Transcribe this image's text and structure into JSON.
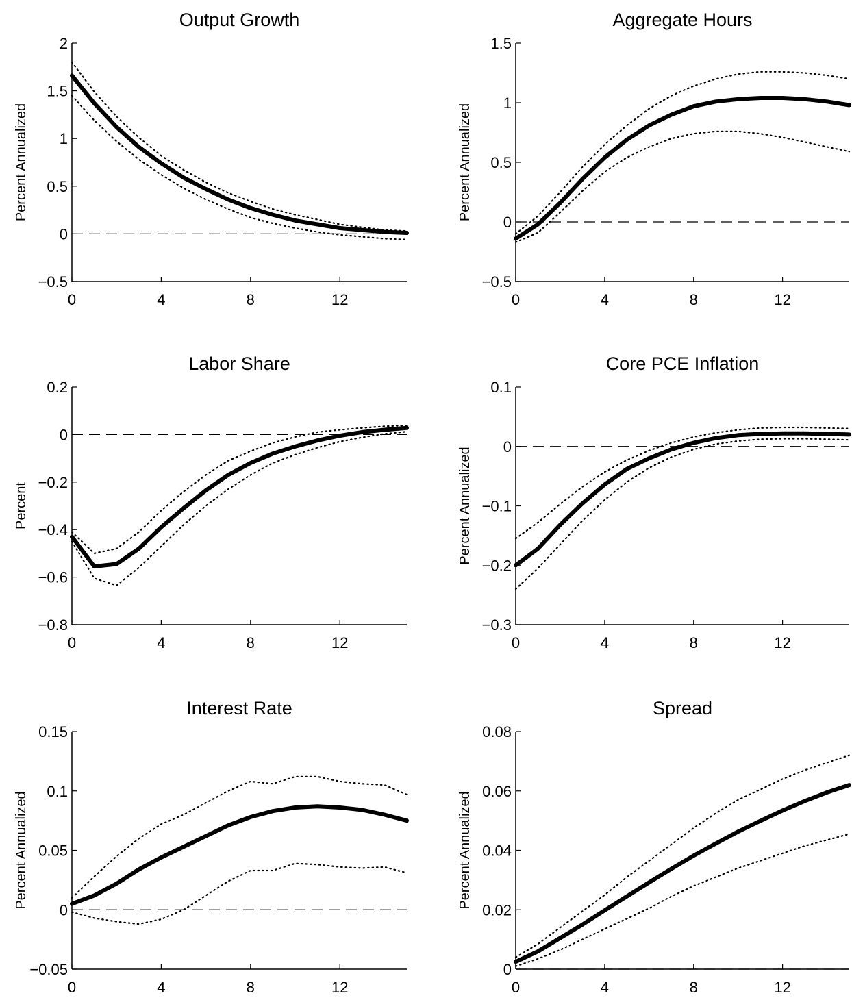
{
  "chart_data": [
    {
      "type": "line",
      "title": "Output Growth",
      "ylabel": "Percent Annualized",
      "xlim": [
        0,
        15
      ],
      "ylim": [
        -0.5,
        2
      ],
      "xticks": [
        0,
        4,
        8,
        12
      ],
      "xtick_labels": [
        "0",
        "4",
        "8",
        "12"
      ],
      "yticks": [
        -0.5,
        0,
        0.5,
        1,
        1.5,
        2
      ],
      "ytick_labels": [
        "-0.5",
        "0",
        "0.5",
        "1",
        "1.5",
        "2"
      ],
      "zero_line": 0,
      "x": [
        0,
        1,
        2,
        3,
        4,
        5,
        6,
        7,
        8,
        9,
        10,
        11,
        12,
        13,
        14,
        15
      ],
      "series": [
        {
          "role": "median",
          "values": [
            1.66,
            1.37,
            1.12,
            0.91,
            0.74,
            0.59,
            0.47,
            0.36,
            0.27,
            0.2,
            0.14,
            0.1,
            0.06,
            0.04,
            0.02,
            0.01
          ]
        },
        {
          "role": "upper",
          "values": [
            1.8,
            1.49,
            1.23,
            1.01,
            0.82,
            0.67,
            0.54,
            0.43,
            0.34,
            0.26,
            0.2,
            0.15,
            0.1,
            0.07,
            0.04,
            0.03
          ]
        },
        {
          "role": "lower",
          "values": [
            1.45,
            1.19,
            0.97,
            0.78,
            0.62,
            0.48,
            0.36,
            0.26,
            0.17,
            0.11,
            0.06,
            0.02,
            -0.01,
            -0.03,
            -0.05,
            -0.06
          ]
        }
      ]
    },
    {
      "type": "line",
      "title": "Aggregate Hours",
      "ylabel": "Percent Annualized",
      "xlim": [
        0,
        15
      ],
      "ylim": [
        -0.5,
        1.5
      ],
      "xticks": [
        0,
        4,
        8,
        12
      ],
      "xtick_labels": [
        "0",
        "4",
        "8",
        "12"
      ],
      "yticks": [
        -0.5,
        0,
        0.5,
        1,
        1.5
      ],
      "ytick_labels": [
        "-0.5",
        "0",
        "0.5",
        "1",
        "1.5"
      ],
      "zero_line": 0,
      "x": [
        0,
        1,
        2,
        3,
        4,
        5,
        6,
        7,
        8,
        9,
        10,
        11,
        12,
        13,
        14,
        15
      ],
      "series": [
        {
          "role": "median",
          "values": [
            -0.14,
            -0.02,
            0.16,
            0.36,
            0.54,
            0.69,
            0.81,
            0.9,
            0.97,
            1.01,
            1.03,
            1.04,
            1.04,
            1.03,
            1.01,
            0.98
          ]
        },
        {
          "role": "upper",
          "values": [
            -0.1,
            0.05,
            0.25,
            0.46,
            0.65,
            0.81,
            0.95,
            1.06,
            1.14,
            1.2,
            1.24,
            1.26,
            1.26,
            1.25,
            1.23,
            1.2
          ]
        },
        {
          "role": "lower",
          "values": [
            -0.17,
            -0.09,
            0.08,
            0.26,
            0.42,
            0.54,
            0.63,
            0.7,
            0.74,
            0.76,
            0.76,
            0.74,
            0.71,
            0.67,
            0.63,
            0.59
          ]
        }
      ]
    },
    {
      "type": "line",
      "title": "Labor Share",
      "ylabel": "Percent",
      "xlim": [
        0,
        15
      ],
      "ylim": [
        -0.8,
        0.2
      ],
      "xticks": [
        0,
        4,
        8,
        12
      ],
      "xtick_labels": [
        "0",
        "4",
        "8",
        "12"
      ],
      "yticks": [
        -0.8,
        -0.6,
        -0.4,
        -0.2,
        0,
        0.2
      ],
      "ytick_labels": [
        "-0.8",
        "-0.6",
        "-0.4",
        "-0.2",
        "0",
        "0.2"
      ],
      "zero_line": 0,
      "x": [
        0,
        1,
        2,
        3,
        4,
        5,
        6,
        7,
        8,
        9,
        10,
        11,
        12,
        13,
        14,
        15
      ],
      "series": [
        {
          "role": "median",
          "values": [
            -0.43,
            -0.555,
            -0.545,
            -0.48,
            -0.39,
            -0.31,
            -0.235,
            -0.17,
            -0.12,
            -0.08,
            -0.05,
            -0.025,
            -0.005,
            0.01,
            0.02,
            0.028
          ]
        },
        {
          "role": "upper",
          "values": [
            -0.41,
            -0.5,
            -0.48,
            -0.41,
            -0.32,
            -0.24,
            -0.17,
            -0.11,
            -0.07,
            -0.035,
            -0.01,
            0.01,
            0.02,
            0.028,
            0.035,
            0.038
          ]
        },
        {
          "role": "lower",
          "values": [
            -0.45,
            -0.605,
            -0.635,
            -0.56,
            -0.47,
            -0.38,
            -0.3,
            -0.23,
            -0.17,
            -0.12,
            -0.085,
            -0.055,
            -0.03,
            -0.012,
            0.003,
            0.012
          ]
        }
      ]
    },
    {
      "type": "line",
      "title": "Core PCE Inflation",
      "ylabel": "Percent Annualized",
      "xlim": [
        0,
        15
      ],
      "ylim": [
        -0.3,
        0.1
      ],
      "xticks": [
        0,
        4,
        8,
        12
      ],
      "xtick_labels": [
        "0",
        "4",
        "8",
        "12"
      ],
      "yticks": [
        -0.3,
        -0.2,
        -0.1,
        0,
        0.1
      ],
      "ytick_labels": [
        "-0.3",
        "-0.2",
        "-0.1",
        "0",
        "0.1"
      ],
      "zero_line": 0,
      "x": [
        0,
        1,
        2,
        3,
        4,
        5,
        6,
        7,
        8,
        9,
        10,
        11,
        12,
        13,
        14,
        15
      ],
      "series": [
        {
          "role": "median",
          "values": [
            -0.2,
            -0.172,
            -0.132,
            -0.096,
            -0.064,
            -0.038,
            -0.02,
            -0.005,
            0.006,
            0.014,
            0.019,
            0.021,
            0.022,
            0.022,
            0.021,
            0.02
          ]
        },
        {
          "role": "upper",
          "values": [
            -0.155,
            -0.128,
            -0.097,
            -0.068,
            -0.043,
            -0.023,
            -0.007,
            0.006,
            0.016,
            0.023,
            0.028,
            0.031,
            0.032,
            0.032,
            0.031,
            0.03
          ]
        },
        {
          "role": "lower",
          "values": [
            -0.24,
            -0.205,
            -0.165,
            -0.125,
            -0.09,
            -0.06,
            -0.036,
            -0.018,
            -0.005,
            0.004,
            0.009,
            0.012,
            0.013,
            0.013,
            0.012,
            0.011
          ]
        }
      ]
    },
    {
      "type": "line",
      "title": "Interest Rate",
      "ylabel": "Percent Annualized",
      "xlim": [
        0,
        15
      ],
      "ylim": [
        -0.05,
        0.15
      ],
      "xticks": [
        0,
        4,
        8,
        12
      ],
      "xtick_labels": [
        "0",
        "4",
        "8",
        "12"
      ],
      "yticks": [
        -0.05,
        0,
        0.05,
        0.1,
        0.15
      ],
      "ytick_labels": [
        "-0.05",
        "0",
        "0.05",
        "0.1",
        "0.15"
      ],
      "zero_line": 0,
      "x": [
        0,
        1,
        2,
        3,
        4,
        5,
        6,
        7,
        8,
        9,
        10,
        11,
        12,
        13,
        14,
        15
      ],
      "series": [
        {
          "role": "median",
          "values": [
            0.005,
            0.012,
            0.022,
            0.034,
            0.044,
            0.053,
            0.062,
            0.071,
            0.078,
            0.083,
            0.086,
            0.087,
            0.086,
            0.084,
            0.08,
            0.075
          ]
        },
        {
          "role": "upper",
          "values": [
            0.01,
            0.028,
            0.045,
            0.06,
            0.072,
            0.08,
            0.09,
            0.1,
            0.108,
            0.106,
            0.112,
            0.112,
            0.108,
            0.106,
            0.105,
            0.097
          ]
        },
        {
          "role": "lower",
          "values": [
            -0.002,
            -0.007,
            -0.01,
            -0.012,
            -0.008,
            0.0,
            0.012,
            0.024,
            0.033,
            0.033,
            0.039,
            0.038,
            0.036,
            0.035,
            0.036,
            0.031
          ]
        }
      ]
    },
    {
      "type": "line",
      "title": "Spread",
      "ylabel": "Percent Annualized",
      "xlim": [
        0,
        15
      ],
      "ylim": [
        0,
        0.08
      ],
      "xticks": [
        0,
        4,
        8,
        12
      ],
      "xtick_labels": [
        "0",
        "4",
        "8",
        "12"
      ],
      "yticks": [
        0,
        0.02,
        0.04,
        0.06,
        0.08
      ],
      "ytick_labels": [
        "0",
        "0.02",
        "0.04",
        "0.06",
        "0.08"
      ],
      "zero_line": 0,
      "x": [
        0,
        1,
        2,
        3,
        4,
        5,
        6,
        7,
        8,
        9,
        10,
        11,
        12,
        13,
        14,
        15
      ],
      "series": [
        {
          "role": "median",
          "values": [
            0.0025,
            0.006,
            0.0105,
            0.015,
            0.0198,
            0.0245,
            0.0292,
            0.0338,
            0.0382,
            0.0423,
            0.0463,
            0.0499,
            0.0534,
            0.0566,
            0.0595,
            0.062
          ]
        },
        {
          "role": "upper",
          "values": [
            0.004,
            0.0085,
            0.014,
            0.0195,
            0.025,
            0.031,
            0.0365,
            0.042,
            0.0475,
            0.0525,
            0.057,
            0.0605,
            0.064,
            0.067,
            0.0695,
            0.072
          ]
        },
        {
          "role": "lower",
          "values": [
            0.001,
            0.0035,
            0.0065,
            0.01,
            0.0135,
            0.017,
            0.0205,
            0.0245,
            0.028,
            0.031,
            0.034,
            0.0365,
            0.039,
            0.0415,
            0.0435,
            0.0455
          ]
        }
      ]
    }
  ]
}
